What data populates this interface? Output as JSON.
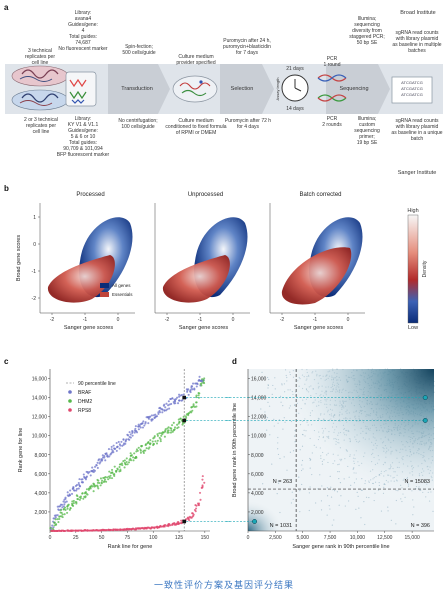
{
  "panels": {
    "a": {
      "label": "a",
      "inst_broad": "Broad Institute",
      "inst_sanger": "Sanger Institute",
      "lib_b": [
        "Library:",
        "avana4",
        "Guides/gene:",
        "4",
        "Total guides:",
        "74,687",
        "No fluorescent marker"
      ],
      "lib_s": [
        "Library:",
        "KY V1 & V1.1",
        "Guides/gene:",
        "5 & 6 or 10",
        "Total guides:",
        "90,709 & 101,094",
        "BFP fluorescent marker"
      ],
      "rep_b": [
        "3 technical",
        "replicates per",
        "cell line"
      ],
      "rep_s": [
        "2 or 3 technical",
        "replicates per",
        "cell line"
      ],
      "step_transduction": "Transduction",
      "step_selection": "Selection",
      "step_sequencing": "Sequencing",
      "spin": [
        "Spin-fection;",
        "500 cells/guide"
      ],
      "nocentri": [
        "No centrifugation;",
        "100 cells/guide"
      ],
      "medium_b": [
        "Culture medium",
        "provider specified"
      ],
      "medium_s": [
        "Culture medium",
        "conditioned to fixed formula",
        "of RPMI or DMEM"
      ],
      "puro_b": [
        "Puromycin after 24 h,",
        "puromycin+blasticidin",
        "for 7 days"
      ],
      "puro_s": [
        "Puromycin after 72 h",
        "for 4 days"
      ],
      "clock_top": "21 days",
      "clock_bottom": "14 days",
      "clock_side": "Assay length",
      "pcr_b": [
        "PCR",
        "1 round"
      ],
      "pcr_s": [
        "PCR",
        "2 rounds"
      ],
      "illum_b": [
        "Illumina;",
        "sequencing",
        "diversity from",
        "staggered PCR;",
        "50 bp SE"
      ],
      "illum_s": [
        "Illumina;",
        "custom",
        "sequencing",
        "primer;",
        "19 bp SE"
      ],
      "out_b": [
        "sgRNA read counts",
        "with library plasmid",
        "as baseline in multiple",
        "batches"
      ],
      "out_s": [
        "sgRNA read counts",
        "with library plasmid",
        "as baseline in a unique",
        "batch"
      ],
      "seq_lines": [
        "ATCGATCG",
        "ATCGATCG",
        "ATCGATCG"
      ]
    },
    "b": {
      "label": "b",
      "titles": [
        "Processed",
        "Unprocessed",
        "Batch corrected"
      ],
      "xlabel": "Sanger gene scores",
      "ylabel": "Broad gene scores",
      "xticks": [
        "-2",
        "-1",
        "0"
      ],
      "yticks": [
        "1",
        "0",
        "-1",
        "-2"
      ],
      "legend": [
        "All genes",
        "Essentials"
      ],
      "colorbar_title": "Density",
      "colorbar_high": "High",
      "colorbar_low": "Low"
    },
    "c": {
      "label": "c"
    },
    "d": {
      "label": "d"
    }
  },
  "colors": {
    "dark_blue": "#0b2c78",
    "red": "#c0453b",
    "cyan_line": "#1aa6b5",
    "braf": "#6f76c9",
    "dhm2": "#56b84a",
    "rps8": "#e0476d"
  },
  "chart_data": [
    {
      "type": "scatter",
      "panel": "c",
      "xlabel": "Rank line for gene",
      "ylabel": "Rank gene for line",
      "xlim": [
        0,
        155
      ],
      "ylim": [
        0,
        17000
      ],
      "xticks": [
        0,
        25,
        50,
        75,
        100,
        125,
        150
      ],
      "yticks": [
        2000,
        4000,
        6000,
        8000,
        10000,
        12000,
        14000,
        16000
      ],
      "vline": {
        "x": 130,
        "label": "90 percentile line"
      },
      "legend": [
        "90 percentile line",
        "BRAF",
        "DHM2",
        "RPS8"
      ],
      "series": [
        {
          "name": "BRAF",
          "color": "#6f76c9",
          "end": [
            148,
            16000
          ],
          "points": [
            [
              2,
              600
            ],
            [
              10,
              2600
            ],
            [
              20,
              4000
            ],
            [
              30,
              5200
            ],
            [
              40,
              6400
            ],
            [
              50,
              7400
            ],
            [
              60,
              8500
            ],
            [
              70,
              9200
            ],
            [
              80,
              10300
            ],
            [
              90,
              11300
            ],
            [
              100,
              12100
            ],
            [
              110,
              12900
            ],
            [
              120,
              13700
            ],
            [
              130,
              14200
            ],
            [
              140,
              15100
            ],
            [
              148,
              16000
            ]
          ]
        },
        {
          "name": "DHM2",
          "color": "#56b84a",
          "end": [
            148,
            15800
          ],
          "points": [
            [
              2,
              300
            ],
            [
              10,
              1600
            ],
            [
              20,
              2700
            ],
            [
              30,
              3600
            ],
            [
              40,
              4400
            ],
            [
              50,
              5200
            ],
            [
              60,
              6000
            ],
            [
              70,
              6900
            ],
            [
              80,
              7800
            ],
            [
              90,
              8600
            ],
            [
              100,
              9400
            ],
            [
              110,
              10100
            ],
            [
              120,
              10900
            ],
            [
              130,
              11600
            ],
            [
              140,
              13000
            ],
            [
              148,
              15800
            ]
          ]
        },
        {
          "name": "RPS8",
          "color": "#e0476d",
          "end": [
            148,
            5300
          ],
          "points": [
            [
              2,
              10
            ],
            [
              20,
              30
            ],
            [
              40,
              60
            ],
            [
              60,
              110
            ],
            [
              80,
              200
            ],
            [
              100,
              340
            ],
            [
              110,
              500
            ],
            [
              120,
              720
            ],
            [
              128,
              950
            ],
            [
              135,
              1300
            ],
            [
              140,
              2000
            ],
            [
              145,
              3200
            ],
            [
              148,
              5300
            ]
          ]
        }
      ],
      "highlight": [
        [
          130,
          14000
        ],
        [
          130,
          11600
        ],
        [
          130,
          1000
        ]
      ]
    },
    {
      "type": "scatter",
      "panel": "d",
      "xlabel": "Sanger gene rank in 90th percentile line",
      "ylabel": "Broad gene rank in 90th percentile line",
      "xlim": [
        0,
        17000
      ],
      "ylim": [
        0,
        17000
      ],
      "xticks": [
        0,
        2500,
        5000,
        7500,
        10000,
        12500,
        15000
      ],
      "yticks": [
        2000,
        4000,
        6000,
        8000,
        10000,
        12000,
        14000,
        16000
      ],
      "vline": 4400,
      "hline": 4400,
      "quadrants": [
        "N = 263",
        "N = 15083",
        "N = 1031",
        "N = 396"
      ],
      "highlight": [
        [
          16200,
          14000
        ],
        [
          16200,
          11600
        ],
        [
          600,
          1000
        ]
      ]
    }
  ],
  "caption": "一致性评价方案及基因评分结果"
}
